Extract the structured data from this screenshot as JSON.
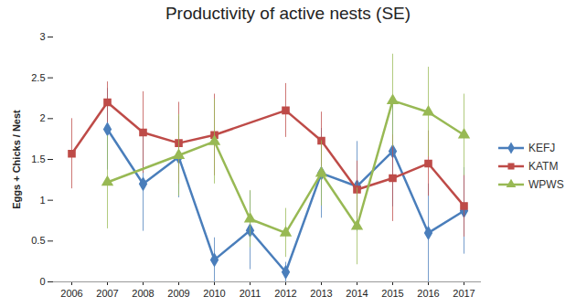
{
  "chart_data": {
    "type": "line",
    "title": "Productivity of active nests (SE)",
    "y_label": "Eggs + Chicks / Nest",
    "categories": [
      "2006",
      "2007",
      "2008",
      "2009",
      "2010",
      "2011",
      "2012",
      "2013",
      "2014",
      "2015",
      "2016",
      "2017"
    ],
    "series": [
      {
        "name": "KEFJ",
        "color": "#4a7ebb",
        "marker": "diamond",
        "values": [
          null,
          1.87,
          1.2,
          1.53,
          0.27,
          0.63,
          0.12,
          1.33,
          1.17,
          1.6,
          0.6,
          0.87
        ],
        "errors": [
          null,
          0.5,
          0.58,
          0.5,
          0.27,
          0.48,
          0.12,
          0.55,
          0.55,
          0.68,
          0.6,
          0.53
        ]
      },
      {
        "name": "KATM",
        "color": "#be4b48",
        "marker": "square",
        "values": [
          1.57,
          2.2,
          1.83,
          1.7,
          1.8,
          null,
          2.1,
          1.73,
          1.13,
          1.27,
          1.45,
          0.93
        ],
        "errors": [
          0.43,
          0.25,
          0.5,
          0.5,
          0.5,
          null,
          0.33,
          0.35,
          0.35,
          0.53,
          0.4,
          0.38
        ]
      },
      {
        "name": "WPWS",
        "color": "#98b954",
        "marker": "triangle",
        "values": [
          null,
          1.22,
          null,
          1.55,
          1.72,
          0.77,
          0.6,
          1.33,
          0.68,
          2.22,
          2.08,
          1.8
        ],
        "errors": [
          null,
          0.57,
          null,
          0.5,
          0.52,
          0.35,
          0.3,
          0.4,
          0.47,
          0.57,
          0.55,
          0.5
        ]
      }
    ],
    "ylim": [
      0,
      3
    ],
    "yticks": [
      0,
      0.5,
      1,
      1.5,
      2,
      2.5,
      3
    ],
    "grid": false,
    "legend": "right"
  }
}
